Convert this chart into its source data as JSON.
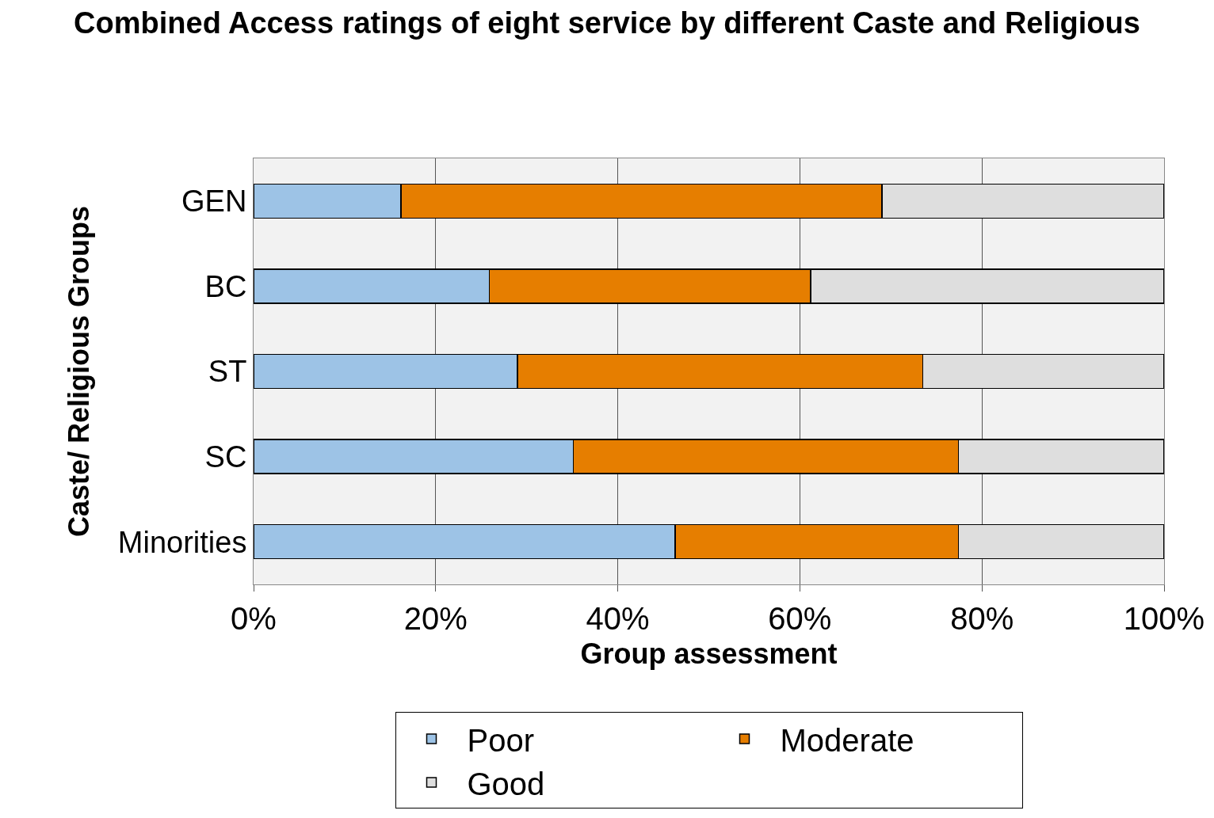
{
  "chart_data": {
    "type": "bar",
    "orientation": "horizontal",
    "stacked": true,
    "title": "Combined Access ratings of eight service by different Caste and Religious",
    "xlabel": "Group assessment",
    "ylabel": "Caste/ Religious Groups",
    "categories": [
      "GEN",
      "BC",
      "ST",
      "SC",
      "Minorities"
    ],
    "series": [
      {
        "name": "Poor",
        "color": "#9dc3e6",
        "values": [
          16.2,
          25.9,
          29.0,
          35.1,
          46.3
        ]
      },
      {
        "name": "Moderate",
        "color": "#e67e00",
        "values": [
          52.8,
          35.3,
          44.5,
          42.3,
          31.1
        ]
      },
      {
        "name": "Good",
        "color": "#dedede",
        "values": [
          31.0,
          38.8,
          26.5,
          22.6,
          22.6
        ]
      }
    ],
    "xlim": [
      0,
      100
    ],
    "xticks": [
      {
        "value": 0,
        "label": "0%"
      },
      {
        "value": 20,
        "label": "20%"
      },
      {
        "value": 40,
        "label": "40%"
      },
      {
        "value": 60,
        "label": "60%"
      },
      {
        "value": 80,
        "label": "80%"
      },
      {
        "value": 100,
        "label": "100%"
      }
    ],
    "grid": "x",
    "legend": "bottom"
  }
}
